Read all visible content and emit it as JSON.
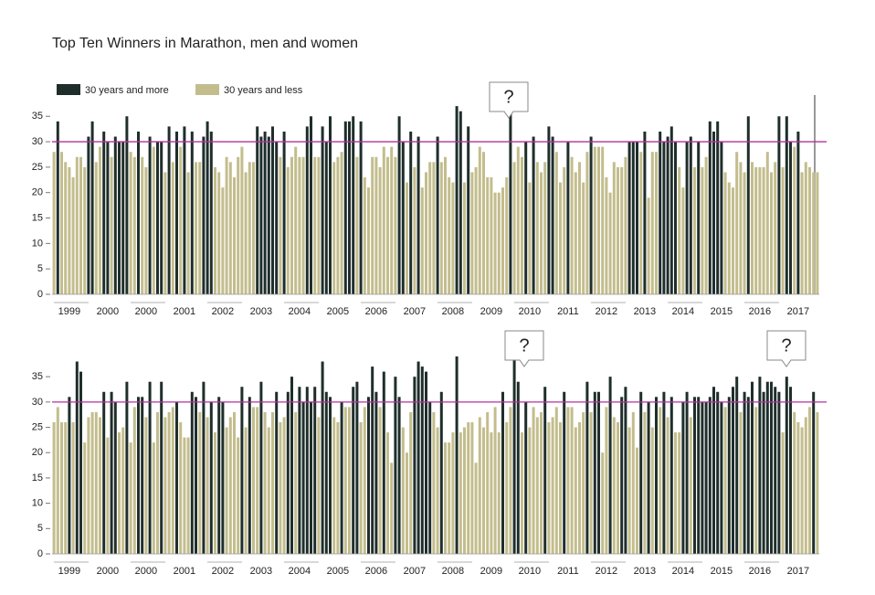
{
  "chart_data": [
    {
      "type": "bar",
      "title": "Top Ten Winners in Marathon, men and women",
      "legend": [
        {
          "name": "30 years and more",
          "color": "#1f2e2b"
        },
        {
          "name": "30 years and less",
          "color": "#c3bd8d"
        }
      ],
      "threshold": 30,
      "line_color": "#b0309c",
      "ylim": [
        0,
        39
      ],
      "yticks": [
        0,
        5,
        10,
        15,
        20,
        25,
        30,
        35
      ],
      "annotations": [
        "?"
      ],
      "categories": [
        null,
        null,
        null,
        null,
        "1999",
        null,
        null,
        null,
        null,
        null,
        null,
        null,
        null,
        null,
        "2000",
        null,
        null,
        null,
        null,
        null,
        null,
        null,
        null,
        null,
        "2000",
        null,
        null,
        null,
        null,
        null,
        null,
        null,
        null,
        null,
        "2001",
        null,
        null,
        null,
        null,
        null,
        null,
        null,
        null,
        null,
        "2002",
        null,
        null,
        null,
        null,
        null,
        null,
        null,
        null,
        null,
        "2003",
        null,
        null,
        null,
        null,
        null,
        null,
        null,
        null,
        null,
        "2004",
        null,
        null,
        null,
        null,
        null,
        null,
        null,
        null,
        null,
        "2005",
        null,
        null,
        null,
        null,
        null,
        null,
        null,
        null,
        null,
        "2006",
        null,
        null,
        null,
        null,
        null,
        null,
        null,
        null,
        null,
        "2007",
        null,
        null,
        null,
        null,
        null,
        null,
        null,
        null,
        null,
        "2008",
        null,
        null,
        null,
        null,
        null,
        null,
        null,
        null,
        null,
        "2009",
        null,
        null,
        null,
        null,
        null,
        null,
        null,
        null,
        null,
        "2010",
        null,
        null,
        null,
        null,
        null,
        null,
        null,
        null,
        null,
        "2011",
        null,
        null,
        null,
        null,
        null,
        null,
        null,
        null,
        null,
        "2012",
        null,
        null,
        null,
        null,
        null,
        null,
        null,
        null,
        null,
        "2013",
        null,
        null,
        null,
        null,
        null,
        null,
        null,
        null,
        null,
        "2014",
        null,
        null,
        null,
        null,
        null,
        null,
        null,
        null,
        null,
        "2015",
        null,
        null,
        null,
        null,
        null,
        null,
        null,
        null,
        null,
        "2016",
        null,
        null,
        null,
        null,
        null,
        null,
        null,
        null,
        null,
        "2017",
        null,
        null,
        null,
        null,
        null
      ],
      "values": [
        28,
        34,
        28,
        26,
        25,
        23,
        27,
        27,
        25,
        31,
        34,
        26,
        29,
        32,
        30,
        27,
        31,
        30,
        30,
        35,
        28,
        27,
        32,
        27,
        25,
        31,
        29,
        30,
        30,
        24,
        33,
        26,
        32,
        29,
        33,
        24,
        32,
        26,
        26,
        31,
        34,
        32,
        25,
        24,
        21,
        27,
        26,
        23,
        27,
        29,
        24,
        26,
        26,
        33,
        31,
        32,
        31,
        33,
        30,
        27,
        32,
        25,
        27,
        29,
        27,
        27,
        33,
        35,
        27,
        27,
        33,
        30,
        35,
        26,
        27,
        28,
        34,
        34,
        35,
        27,
        34,
        23,
        21,
        27,
        27,
        25,
        29,
        27,
        29,
        27,
        35,
        30,
        22,
        32,
        25,
        31,
        21,
        24,
        26,
        26,
        31,
        26,
        27,
        23,
        22,
        37,
        36,
        22,
        33,
        24,
        25,
        29,
        28,
        23,
        23,
        20,
        20,
        21,
        23,
        37,
        26,
        29,
        27,
        30,
        22,
        31,
        26,
        24,
        26,
        33,
        31,
        28,
        22,
        25,
        30,
        27,
        24,
        26,
        22,
        28,
        31,
        29,
        29,
        29,
        23,
        20,
        26,
        25,
        25,
        27,
        30,
        30,
        30,
        28,
        32,
        19,
        28,
        28,
        32,
        30,
        31,
        33,
        30,
        25,
        21,
        30,
        31,
        25,
        30,
        25,
        27,
        34,
        32,
        34,
        30,
        24,
        22,
        21,
        28,
        26,
        24,
        35,
        26,
        25,
        25,
        25,
        28,
        24,
        26,
        35,
        25,
        35,
        30,
        29,
        32,
        24,
        26,
        25,
        24,
        24
      ]
    },
    {
      "type": "bar",
      "colors": [
        "#1f2e2b",
        "#c3bd8d"
      ],
      "threshold": 30,
      "line_color": "#b0309c",
      "ylim": [
        0,
        39
      ],
      "yticks": [
        0,
        5,
        10,
        15,
        20,
        25,
        30,
        35
      ],
      "annotations": [
        "?",
        "?"
      ],
      "categories": [
        null,
        null,
        null,
        null,
        "1999",
        null,
        null,
        null,
        null,
        null,
        null,
        null,
        null,
        null,
        "2000",
        null,
        null,
        null,
        null,
        null,
        null,
        null,
        null,
        null,
        "2000",
        null,
        null,
        null,
        null,
        null,
        null,
        null,
        null,
        null,
        "2001",
        null,
        null,
        null,
        null,
        null,
        null,
        null,
        null,
        null,
        "2002",
        null,
        null,
        null,
        null,
        null,
        null,
        null,
        null,
        null,
        "2003",
        null,
        null,
        null,
        null,
        null,
        null,
        null,
        null,
        null,
        "2004",
        null,
        null,
        null,
        null,
        null,
        null,
        null,
        null,
        null,
        "2005",
        null,
        null,
        null,
        null,
        null,
        null,
        null,
        null,
        null,
        "2006",
        null,
        null,
        null,
        null,
        null,
        null,
        null,
        null,
        null,
        "2007",
        null,
        null,
        null,
        null,
        null,
        null,
        null,
        null,
        null,
        "2008",
        null,
        null,
        null,
        null,
        null,
        null,
        null,
        null,
        null,
        "2009",
        null,
        null,
        null,
        null,
        null,
        null,
        null,
        null,
        null,
        "2010",
        null,
        null,
        null,
        null,
        null,
        null,
        null,
        null,
        null,
        "2011",
        null,
        null,
        null,
        null,
        null,
        null,
        null,
        null,
        null,
        "2012",
        null,
        null,
        null,
        null,
        null,
        null,
        null,
        null,
        null,
        "2013",
        null,
        null,
        null,
        null,
        null,
        null,
        null,
        null,
        null,
        "2014",
        null,
        null,
        null,
        null,
        null,
        null,
        null,
        null,
        null,
        "2015",
        null,
        null,
        null,
        null,
        null,
        null,
        null,
        null,
        null,
        "2016",
        null,
        null,
        null,
        null,
        null,
        null,
        null,
        null,
        null,
        "2017",
        null,
        null,
        null,
        null,
        null
      ],
      "values": [
        26,
        29,
        26,
        26,
        31,
        26,
        38,
        36,
        22,
        27,
        28,
        28,
        27,
        32,
        23,
        32,
        30,
        24,
        25,
        34,
        22,
        29,
        31,
        31,
        27,
        34,
        22,
        28,
        34,
        27,
        28,
        29,
        30,
        26,
        23,
        23,
        32,
        31,
        28,
        34,
        27,
        30,
        24,
        31,
        30,
        25,
        27,
        28,
        23,
        33,
        25,
        31,
        29,
        29,
        34,
        28,
        25,
        28,
        32,
        26,
        27,
        32,
        35,
        28,
        33,
        30,
        33,
        30,
        33,
        27,
        38,
        32,
        31,
        27,
        26,
        30,
        29,
        29,
        33,
        34,
        26,
        29,
        31,
        37,
        32,
        29,
        36,
        24,
        18,
        35,
        31,
        25,
        20,
        28,
        35,
        38,
        37,
        36,
        30,
        28,
        25,
        32,
        22,
        22,
        24,
        39,
        24,
        25,
        26,
        26,
        18,
        27,
        25,
        28,
        24,
        29,
        24,
        32,
        26,
        29,
        39,
        34,
        24,
        30,
        25,
        29,
        27,
        28,
        33,
        26,
        27,
        29,
        26,
        32,
        29,
        29,
        25,
        26,
        28,
        34,
        28,
        32,
        32,
        20,
        29,
        35,
        27,
        26,
        31,
        33,
        25,
        28,
        21,
        32,
        28,
        30,
        25,
        31,
        29,
        32,
        27,
        31,
        24,
        24,
        30,
        32,
        27,
        31,
        31,
        30,
        30,
        31,
        33,
        32,
        30,
        29,
        31,
        33,
        35,
        28,
        32,
        31,
        34,
        29,
        35,
        32,
        34,
        34,
        33,
        32,
        24,
        35,
        33,
        28,
        26,
        25,
        27,
        29,
        32,
        28
      ]
    }
  ]
}
